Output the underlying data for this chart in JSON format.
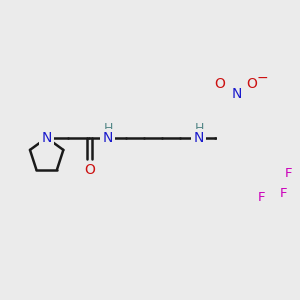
{
  "background_color": "#ebebeb",
  "bond_color": "#1a1a1a",
  "bond_width": 1.8,
  "figsize": [
    3.0,
    3.0
  ],
  "dpi": 100,
  "N_color": "#1a1acc",
  "O_color": "#cc1111",
  "F_color": "#cc00bb",
  "H_color": "#558888",
  "xlim": [
    0,
    10.0
  ],
  "ylim": [
    0,
    10.0
  ]
}
